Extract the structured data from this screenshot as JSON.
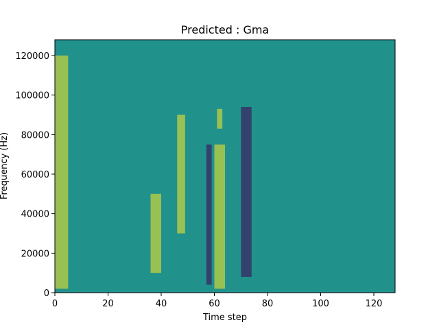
{
  "chart_data": {
    "type": "heatmap",
    "title": "Predicted : Gma",
    "xlabel": "Time step",
    "ylabel": "Frequency (Hz)",
    "xlim": [
      0,
      128
    ],
    "ylim": [
      0,
      128000
    ],
    "x_ticks": [
      0,
      20,
      40,
      60,
      80,
      100,
      120
    ],
    "y_ticks": [
      0,
      20000,
      40000,
      60000,
      80000,
      100000,
      120000
    ],
    "grid": false,
    "colors": {
      "background": "#21918c",
      "high": "#fde725",
      "low": "#440154"
    },
    "bands": [
      {
        "label": "high",
        "x0": 60,
        "x1": 64,
        "y0": 2000,
        "y1": 75000
      },
      {
        "label": "high",
        "x0": 61,
        "x1": 63,
        "y0": 83000,
        "y1": 93000
      },
      {
        "label": "low",
        "x0": 70,
        "x1": 74,
        "y0": 8000,
        "y1": 94000
      },
      {
        "label": "low",
        "x0": 57,
        "x1": 59,
        "y0": 4000,
        "y1": 75000
      },
      {
        "label": "high",
        "x0": 0,
        "x1": 5,
        "y0": 2000,
        "y1": 120000
      },
      {
        "label": "high",
        "x0": 36,
        "x1": 40,
        "y0": 10000,
        "y1": 50000
      },
      {
        "label": "high",
        "x0": 46,
        "x1": 49,
        "y0": 30000,
        "y1": 90000
      }
    ]
  },
  "axis": {
    "x_tick_labels": [
      "0",
      "20",
      "40",
      "60",
      "80",
      "100",
      "120"
    ],
    "y_tick_labels": [
      "0",
      "20000",
      "40000",
      "60000",
      "80000",
      "100000",
      "120000"
    ]
  }
}
